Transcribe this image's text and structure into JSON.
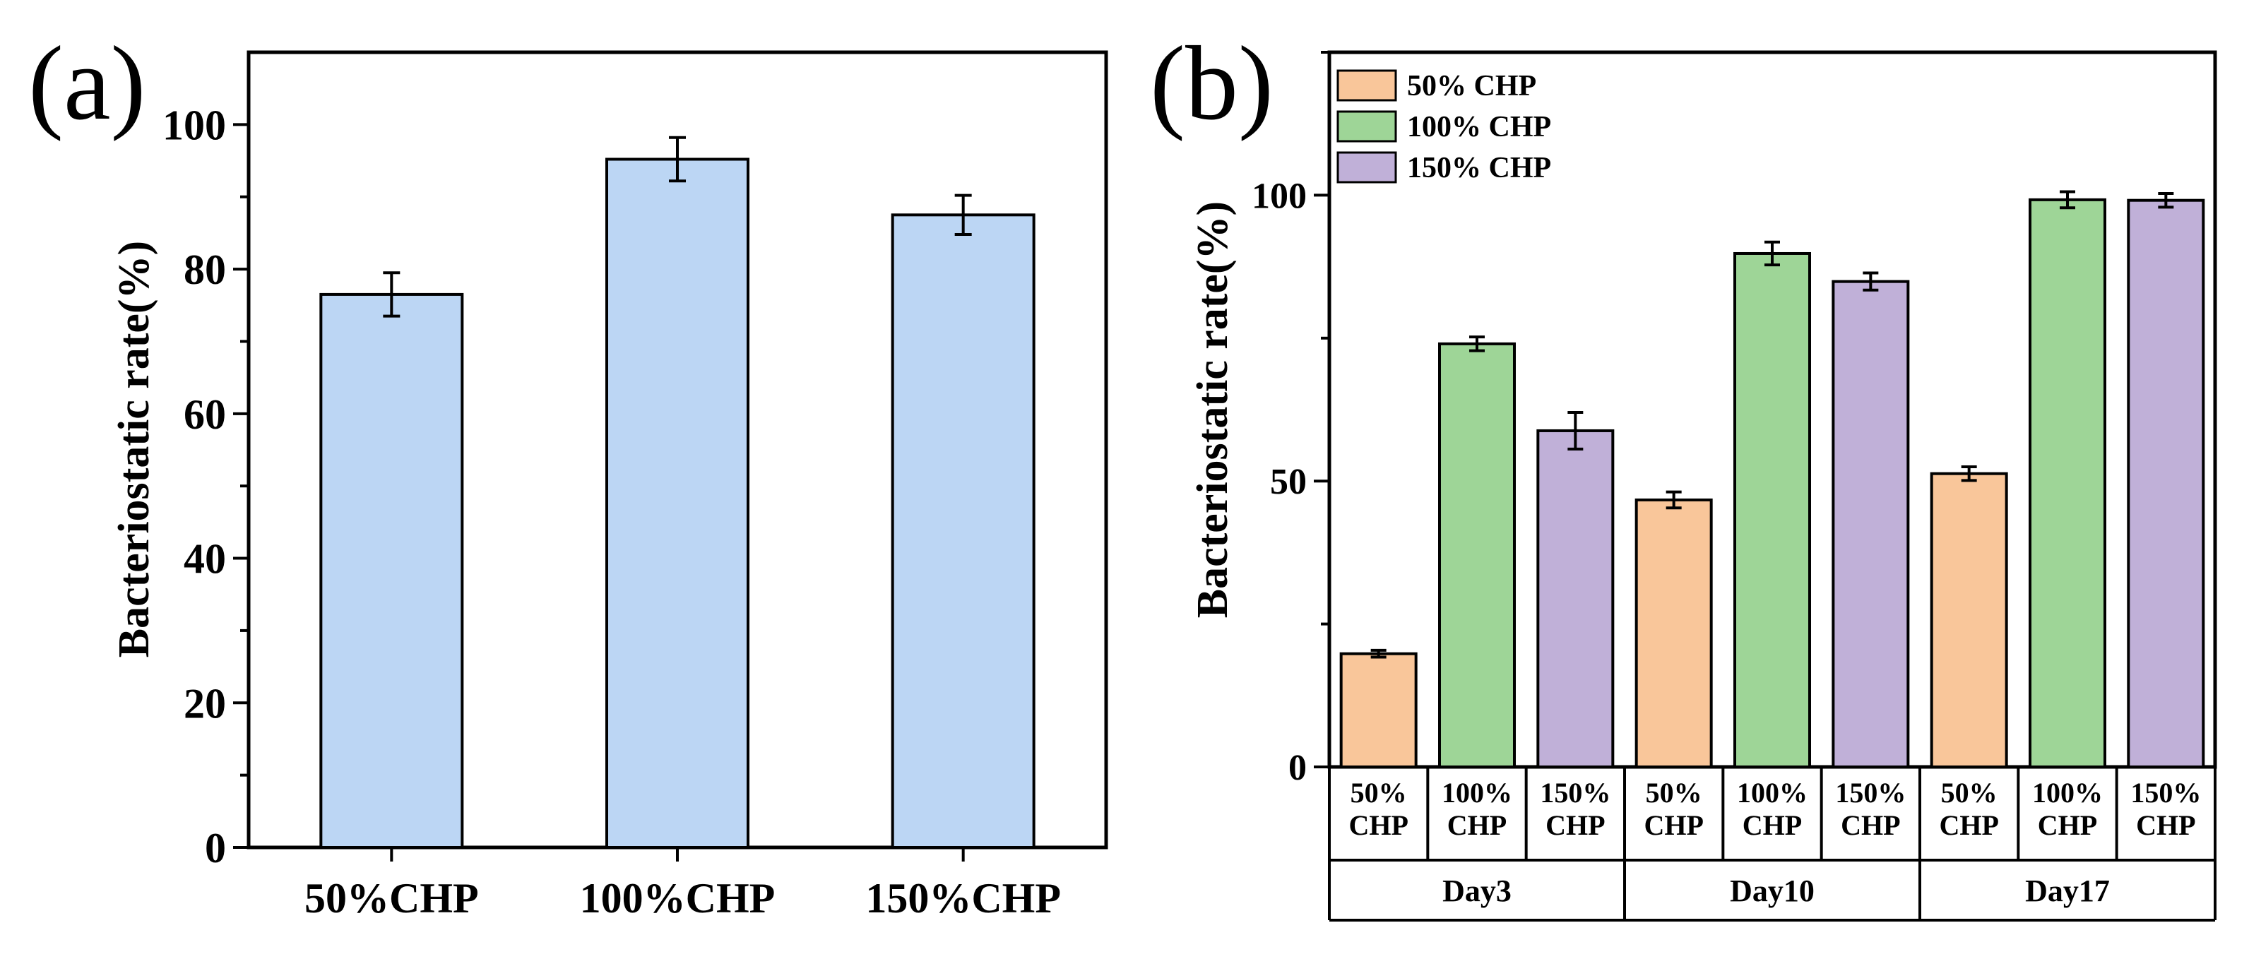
{
  "chart_data": [
    {
      "panel": "(a)",
      "type": "bar",
      "categories": [
        "50%CHP",
        "100%CHP",
        "150%CHP"
      ],
      "values": [
        76.5,
        95.2,
        87.5
      ],
      "errors": [
        3.0,
        3.0,
        2.7
      ],
      "ylabel": "Bacteriostatic rate(%)",
      "ylim": [
        0,
        110
      ],
      "yticks": [
        0,
        20,
        40,
        60,
        80,
        100
      ],
      "bar_color": "#bcd6f4",
      "grid": false
    },
    {
      "panel": "(b)",
      "type": "bar",
      "groups": [
        "Day3",
        "Day10",
        "Day17"
      ],
      "cell_labels": [
        "50%\nCHP",
        "100%\nCHP",
        "150%\nCHP"
      ],
      "series": [
        {
          "name": "50%  CHP",
          "color": "#f9c69a",
          "values": [
            19.8,
            46.7,
            51.3
          ],
          "errors": [
            0.6,
            1.4,
            1.2
          ]
        },
        {
          "name": "100%  CHP",
          "color": "#9ed597",
          "values": [
            74.0,
            89.8,
            99.2
          ],
          "errors": [
            1.2,
            2.0,
            1.4
          ]
        },
        {
          "name": "150%  CHP",
          "color": "#c0b0d8",
          "values": [
            58.8,
            84.9,
            99.1
          ],
          "errors": [
            3.2,
            1.5,
            1.2
          ]
        }
      ],
      "ylabel": "Bacteriostatic rate(%)",
      "ylim": [
        0,
        125
      ],
      "yticks": [
        0,
        50,
        100
      ],
      "legend_position": "top-left",
      "grid": false
    }
  ]
}
